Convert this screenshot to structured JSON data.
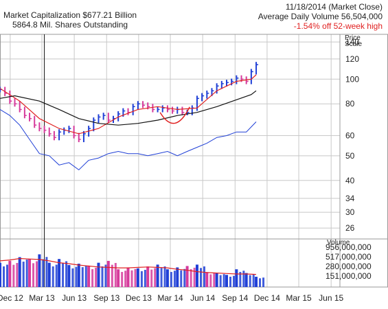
{
  "header": {
    "market_cap": "Market Capitalization $677.21 Billion",
    "shares": "5864.8 Mil. Shares Outstanding",
    "date": "11/18/2014 (Market Close)",
    "avg_volume": "Average Daily Volume 56,504,000",
    "off_high": "-1.54% off 52-week high"
  },
  "colors": {
    "price_up": "#1f3fd6",
    "price_down": "#d63a9b",
    "ma_short": "#e02020",
    "ma_long": "#111111",
    "rs_line": "#1f3fd6",
    "cup_annotation": "#e02020",
    "off_high_text": "#e02020",
    "grid": "#c8c8c8"
  },
  "chart_data": {
    "type": "line",
    "price_axis_title": [
      "Price",
      "Scale"
    ],
    "volume_axis_title": "Volume",
    "price_scale": "log",
    "price_ticks": [
      140,
      120,
      100,
      80,
      60,
      50,
      40,
      34,
      30,
      26
    ],
    "volume_ticks": [
      "956,000,000",
      "517,000,000",
      "280,000,000",
      "151,000,000"
    ],
    "date_labels": [
      "Dec 12",
      "Mar 13",
      "Jun 13",
      "Sep 13",
      "Dec 13",
      "Mar 14",
      "Jun 14",
      "Sep 14",
      "Dec 14",
      "Mar 15",
      "Jun 15"
    ],
    "marker_label": "Mar 13",
    "grid": true,
    "series": [
      {
        "role": "price_weekly_close",
        "x": [
          "2012-11-16",
          "2012-11-30",
          "2012-12-14",
          "2012-12-28",
          "2013-01-11",
          "2013-01-25",
          "2013-02-08",
          "2013-02-22",
          "2013-03-08",
          "2013-03-22",
          "2013-04-05",
          "2013-04-19",
          "2013-05-03",
          "2013-05-17",
          "2013-05-31",
          "2013-06-14",
          "2013-06-28",
          "2013-07-12",
          "2013-07-26",
          "2013-08-09",
          "2013-08-23",
          "2013-09-06",
          "2013-09-20",
          "2013-10-04",
          "2013-10-18",
          "2013-11-01",
          "2013-11-15",
          "2013-11-29",
          "2013-12-13",
          "2013-12-27",
          "2014-01-10",
          "2014-01-24",
          "2014-02-07",
          "2014-02-21",
          "2014-03-07",
          "2014-03-21",
          "2014-04-04",
          "2014-04-18",
          "2014-05-02",
          "2014-05-16",
          "2014-05-30",
          "2014-06-13",
          "2014-06-27",
          "2014-07-11",
          "2014-07-25",
          "2014-08-08",
          "2014-08-22",
          "2014-09-05",
          "2014-09-19",
          "2014-10-03",
          "2014-10-17",
          "2014-10-31",
          "2014-11-14"
        ],
        "y": [
          91,
          88,
          82,
          80,
          76,
          72,
          70,
          66,
          64,
          63,
          61,
          59,
          62,
          63,
          64,
          60,
          58,
          61,
          64,
          69,
          71,
          72,
          69,
          70,
          73,
          75,
          74,
          78,
          80,
          79,
          78,
          76,
          76,
          77,
          76,
          75,
          76,
          74,
          74,
          77,
          84,
          86,
          88,
          90,
          94,
          96,
          97,
          98,
          101,
          100,
          98,
          107,
          114
        ]
      },
      {
        "role": "moving_average_50",
        "x": [
          "2012-11-16",
          "2013-01-11",
          "2013-03-08",
          "2013-05-03",
          "2013-06-28",
          "2013-08-23",
          "2013-10-18",
          "2013-12-13",
          "2014-02-07",
          "2014-04-04",
          "2014-05-30",
          "2014-07-25",
          "2014-09-19",
          "2014-10-31",
          "2014-11-14"
        ],
        "y": [
          92,
          82,
          70,
          64,
          61,
          64,
          71,
          76,
          78,
          76,
          77,
          90,
          98,
          100,
          104
        ]
      },
      {
        "role": "moving_average_200",
        "x": [
          "2012-11-16",
          "2012-12-28",
          "2013-03-08",
          "2013-05-03",
          "2013-06-28",
          "2013-08-23",
          "2013-10-18",
          "2013-12-13",
          "2014-02-07",
          "2014-04-04",
          "2014-05-30",
          "2014-07-25",
          "2014-09-19",
          "2014-10-31",
          "2014-11-14"
        ],
        "y": [
          84,
          86,
          82,
          76,
          70,
          67,
          66,
          67,
          69,
          72,
          74,
          78,
          83,
          87,
          90
        ]
      },
      {
        "role": "relative_strength_line",
        "x": [
          "2012-11-16",
          "2012-12-14",
          "2013-01-11",
          "2013-02-08",
          "2013-03-08",
          "2013-04-05",
          "2013-05-03",
          "2013-05-31",
          "2013-06-28",
          "2013-07-26",
          "2013-08-23",
          "2013-09-20",
          "2013-10-18",
          "2013-11-15",
          "2013-12-13",
          "2014-01-10",
          "2014-02-07",
          "2014-03-07",
          "2014-04-04",
          "2014-05-02",
          "2014-05-30",
          "2014-06-27",
          "2014-07-25",
          "2014-08-22",
          "2014-09-19",
          "2014-10-17",
          "2014-11-14"
        ],
        "y": [
          76,
          72,
          66,
          58,
          51,
          50,
          46,
          47,
          44,
          48,
          49,
          51,
          52,
          51,
          51,
          50,
          51,
          52,
          50,
          52,
          54,
          56,
          59,
          60,
          62,
          62,
          68
        ]
      }
    ],
    "volume": {
      "x": [
        "2012-11-16",
        "2012-12-14",
        "2013-01-11",
        "2013-02-08",
        "2013-03-08",
        "2013-04-05",
        "2013-05-03",
        "2013-05-31",
        "2013-06-28",
        "2013-07-26",
        "2013-08-23",
        "2013-09-20",
        "2013-10-18",
        "2013-11-15",
        "2013-12-13",
        "2014-01-10",
        "2014-02-07",
        "2014-03-07",
        "2014-04-04",
        "2014-05-02",
        "2014-05-30",
        "2014-06-27",
        "2014-07-25",
        "2014-08-22",
        "2014-09-19",
        "2014-10-17",
        "2014-11-14"
      ],
      "values": [
        520000000,
        560000000,
        640000000,
        600000000,
        700000000,
        520000000,
        600000000,
        470000000,
        500000000,
        450000000,
        520000000,
        560000000,
        380000000,
        420000000,
        400000000,
        440000000,
        480000000,
        380000000,
        420000000,
        450000000,
        480000000,
        320000000,
        300000000,
        260000000,
        380000000,
        300000000,
        220000000
      ],
      "average": [
        560000000,
        580000000,
        610000000,
        600000000,
        590000000,
        560000000,
        520000000,
        500000000,
        470000000,
        450000000,
        430000000,
        420000000,
        410000000,
        410000000,
        420000000,
        430000000,
        420000000,
        410000000,
        380000000,
        360000000,
        330000000,
        310000000,
        300000000,
        290000000,
        280000000,
        280000000,
        270000000
      ]
    }
  }
}
